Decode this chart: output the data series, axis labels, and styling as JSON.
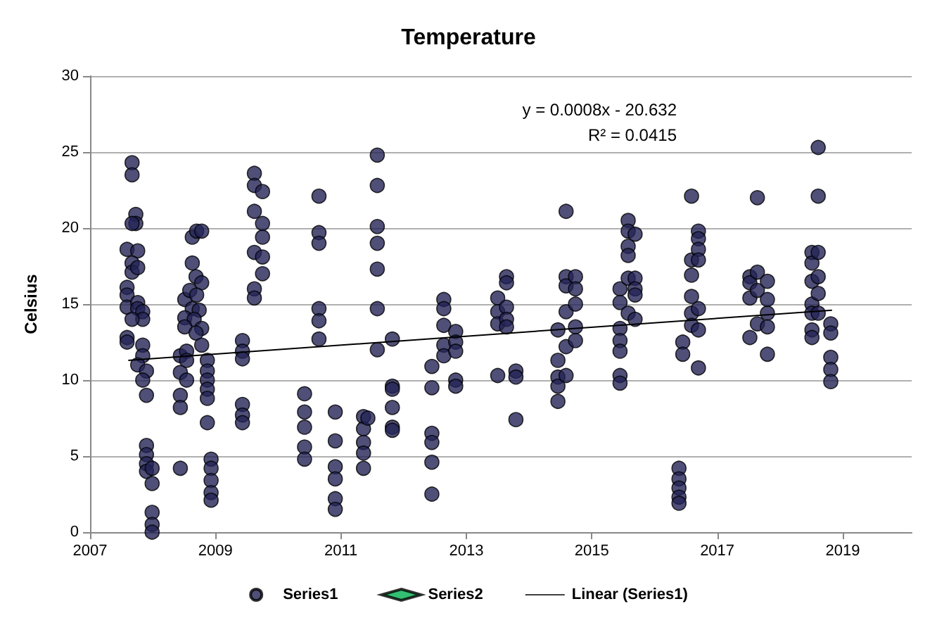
{
  "chart_data": {
    "type": "scatter",
    "title": "Temperature",
    "ylabel": "Celsius",
    "annotations": [
      "y = 0.0008x - 20.632",
      "R² = 0.0415"
    ],
    "xlim": [
      2007,
      2020.1
    ],
    "xticks": [
      2007,
      2009,
      2011,
      2013,
      2015,
      2017,
      2019
    ],
    "ylim": [
      0,
      30
    ],
    "yticks": [
      0,
      5,
      10,
      15,
      20,
      25,
      30
    ],
    "grid": "y",
    "legend": "bottom",
    "marker": "circle",
    "series": [
      {
        "name": "Series1",
        "color": "#232356",
        "x": [
          2007.67,
          2007.67,
          2007.73,
          2007.73,
          2007.67,
          2007.59,
          2007.76,
          2007.67,
          2007.67,
          2007.76,
          2007.59,
          2007.59,
          2007.59,
          2007.76,
          2007.76,
          2007.84,
          2007.84,
          2007.67,
          2007.59,
          2007.59,
          2007.84,
          2007.84,
          2007.76,
          2007.9,
          2007.84,
          2007.9,
          2007.9,
          2007.9,
          2007.9,
          2007.9,
          2007.99,
          2007.99,
          2007.99,
          2007.99,
          2007.99,
          2008.44,
          2008.44,
          2008.44,
          2008.44,
          2008.44,
          2008.54,
          2008.54,
          2008.54,
          2008.63,
          2008.63,
          2008.7,
          2008.78,
          2008.69,
          2008.78,
          2008.51,
          2008.59,
          2008.7,
          2008.63,
          2008.74,
          2008.51,
          2008.66,
          2008.78,
          2008.51,
          2008.69,
          2008.78,
          2008.87,
          2008.87,
          2008.87,
          2008.87,
          2008.87,
          2008.87,
          2008.93,
          2008.93,
          2008.93,
          2008.93,
          2008.93,
          2009.43,
          2009.43,
          2009.43,
          2009.43,
          2009.43,
          2009.43,
          2009.62,
          2009.62,
          2009.62,
          2009.62,
          2009.62,
          2009.62,
          2009.75,
          2009.75,
          2009.75,
          2009.75,
          2009.75,
          2010.42,
          2010.42,
          2010.42,
          2010.42,
          2010.42,
          2010.65,
          2010.65,
          2010.65,
          2010.65,
          2010.65,
          2010.65,
          2010.91,
          2010.91,
          2010.91,
          2010.91,
          2010.91,
          2010.91,
          2011.36,
          2011.36,
          2011.36,
          2011.36,
          2011.36,
          2011.43,
          2011.58,
          2011.58,
          2011.58,
          2011.58,
          2011.58,
          2011.58,
          2011.58,
          2011.82,
          2011.82,
          2011.82,
          2011.82,
          2011.82,
          2011.82,
          2012.45,
          2012.45,
          2012.45,
          2012.45,
          2012.45,
          2012.45,
          2012.64,
          2012.64,
          2012.64,
          2012.64,
          2012.64,
          2012.83,
          2012.83,
          2012.83,
          2012.83,
          2012.83,
          2013.5,
          2013.5,
          2013.5,
          2013.5,
          2013.64,
          2013.64,
          2013.64,
          2013.64,
          2013.64,
          2013.79,
          2013.79,
          2013.79,
          2014.46,
          2014.46,
          2014.46,
          2014.46,
          2014.46,
          2014.59,
          2014.59,
          2014.59,
          2014.59,
          2014.59,
          2014.59,
          2014.74,
          2014.74,
          2014.74,
          2014.74,
          2014.74,
          2015.45,
          2015.45,
          2015.45,
          2015.45,
          2015.45,
          2015.45,
          2015.45,
          2015.58,
          2015.58,
          2015.58,
          2015.58,
          2015.58,
          2015.58,
          2015.69,
          2015.69,
          2015.69,
          2015.69,
          2015.69,
          2016.39,
          2016.39,
          2016.39,
          2016.39,
          2016.39,
          2016.45,
          2016.45,
          2016.59,
          2016.59,
          2016.59,
          2016.59,
          2016.59,
          2016.59,
          2016.7,
          2016.7,
          2016.7,
          2016.7,
          2016.7,
          2016.7,
          2016.7,
          2017.52,
          2017.52,
          2017.52,
          2017.52,
          2017.64,
          2017.64,
          2017.64,
          2017.64,
          2017.8,
          2017.8,
          2017.8,
          2017.8,
          2017.8,
          2018.51,
          2018.51,
          2018.51,
          2018.51,
          2018.51,
          2018.51,
          2018.51,
          2018.61,
          2018.61,
          2018.61,
          2018.61,
          2018.61,
          2018.61,
          2018.81,
          2018.81,
          2018.81,
          2018.81,
          2018.81
        ],
        "values": [
          24.3,
          23.5,
          20.9,
          20.3,
          20.3,
          18.6,
          18.5,
          17.7,
          17.1,
          17.4,
          16.1,
          15.6,
          14.8,
          15.1,
          14.7,
          14.5,
          14.0,
          14.0,
          12.8,
          12.5,
          12.3,
          11.6,
          11.0,
          10.6,
          10.0,
          9.0,
          5.7,
          5.1,
          4.5,
          4.0,
          4.2,
          3.2,
          1.3,
          0.5,
          0.0,
          11.6,
          10.5,
          9.0,
          8.2,
          4.2,
          11.9,
          11.3,
          10.0,
          19.4,
          17.7,
          19.8,
          19.8,
          16.8,
          16.4,
          15.3,
          15.9,
          15.6,
          14.7,
          14.6,
          14.1,
          14.0,
          13.4,
          13.5,
          13.1,
          12.3,
          11.3,
          10.6,
          10.0,
          9.4,
          8.8,
          7.2,
          4.8,
          4.2,
          3.4,
          2.6,
          2.1,
          12.6,
          11.9,
          11.4,
          8.4,
          7.7,
          7.2,
          23.6,
          22.8,
          21.1,
          18.4,
          16.0,
          15.4,
          22.4,
          20.3,
          19.4,
          18.1,
          17.0,
          9.1,
          7.9,
          6.9,
          5.6,
          4.8,
          22.1,
          19.7,
          19.0,
          14.7,
          13.9,
          12.7,
          7.9,
          6.0,
          4.3,
          3.5,
          2.2,
          1.5,
          7.6,
          6.8,
          5.9,
          5.2,
          4.2,
          7.5,
          24.8,
          22.8,
          20.1,
          19.0,
          17.3,
          14.7,
          12.0,
          12.7,
          9.6,
          9.4,
          8.2,
          6.9,
          6.7,
          10.9,
          9.5,
          6.5,
          5.9,
          4.6,
          2.5,
          15.3,
          14.7,
          13.6,
          12.3,
          11.6,
          13.2,
          12.5,
          11.9,
          10.0,
          9.6,
          15.4,
          14.5,
          13.7,
          10.3,
          16.8,
          16.4,
          14.8,
          14.0,
          13.5,
          10.6,
          10.2,
          7.4,
          13.3,
          11.3,
          10.2,
          9.6,
          8.6,
          21.1,
          16.8,
          16.2,
          14.5,
          12.2,
          10.3,
          16.8,
          16.0,
          15.0,
          13.5,
          12.6,
          16.0,
          15.1,
          13.4,
          12.6,
          11.9,
          10.3,
          9.8,
          20.5,
          19.8,
          18.8,
          18.2,
          16.7,
          14.4,
          19.6,
          16.7,
          16.0,
          15.6,
          14.0,
          4.2,
          3.5,
          2.9,
          2.3,
          1.9,
          12.5,
          11.7,
          22.1,
          17.9,
          16.9,
          15.5,
          14.4,
          13.6,
          19.8,
          19.3,
          18.6,
          17.9,
          14.7,
          13.3,
          10.8,
          16.8,
          16.4,
          15.4,
          12.8,
          22.0,
          17.1,
          15.9,
          13.7,
          16.5,
          15.3,
          14.4,
          13.5,
          11.7,
          18.4,
          17.7,
          16.5,
          15.0,
          14.4,
          13.3,
          12.8,
          25.3,
          22.1,
          18.4,
          16.8,
          15.7,
          14.4,
          13.7,
          13.1,
          11.5,
          10.7,
          9.9
        ]
      },
      {
        "name": "Series2",
        "color": "#00b050",
        "marker": "diamond"
      },
      {
        "name": "Linear (Series1)",
        "type": "line",
        "color": "#000000",
        "marker": "none",
        "x": [
          2007.61,
          2018.83
        ],
        "values": [
          11.3,
          14.6
        ]
      }
    ]
  }
}
